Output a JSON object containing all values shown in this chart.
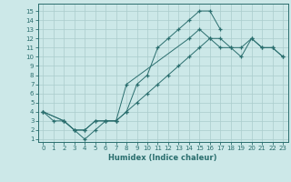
{
  "xlabel": "Humidex (Indice chaleur)",
  "bg_color": "#cce8e8",
  "grid_color": "#aacccc",
  "line_color": "#2a6e6e",
  "xlim_min": -0.5,
  "xlim_max": 23.5,
  "ylim_min": 0.7,
  "ylim_max": 15.8,
  "xticks": [
    0,
    1,
    2,
    3,
    4,
    5,
    6,
    7,
    8,
    9,
    10,
    11,
    12,
    13,
    14,
    15,
    16,
    17,
    18,
    19,
    20,
    21,
    22,
    23
  ],
  "yticks": [
    1,
    2,
    3,
    4,
    5,
    6,
    7,
    8,
    9,
    10,
    11,
    12,
    13,
    14,
    15
  ],
  "line1_x": [
    0,
    1,
    2,
    3,
    4,
    5,
    6,
    7,
    8,
    9,
    10,
    11,
    12,
    13,
    14,
    15,
    16,
    17
  ],
  "line1_y": [
    4,
    3,
    3,
    2,
    1,
    2,
    3,
    3,
    4,
    7,
    8,
    11,
    12,
    13,
    14,
    15,
    15,
    13
  ],
  "line2_x": [
    0,
    2,
    3,
    4,
    5,
    6,
    7,
    8,
    9,
    10,
    11,
    12,
    13,
    14,
    15,
    16,
    17,
    18,
    19,
    20,
    21,
    22,
    23
  ],
  "line2_y": [
    4,
    3,
    2,
    2,
    3,
    3,
    3,
    4,
    5,
    6,
    7,
    8,
    9,
    10,
    11,
    12,
    12,
    11,
    11,
    12,
    11,
    11,
    10
  ],
  "line3_x": [
    0,
    2,
    3,
    4,
    5,
    6,
    7,
    8,
    14,
    15,
    16,
    17,
    18,
    19,
    20,
    21,
    22,
    23
  ],
  "line3_y": [
    4,
    3,
    2,
    2,
    3,
    3,
    3,
    7,
    12,
    13,
    12,
    11,
    11,
    10,
    12,
    11,
    11,
    10
  ]
}
